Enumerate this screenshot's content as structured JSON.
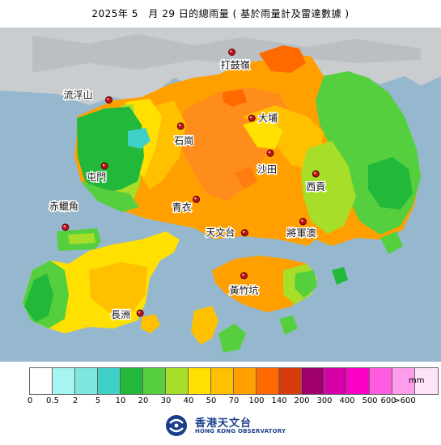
{
  "title": "2025年 5　月 29 日的總雨量 ( 基於雨量計及雷達數據 )",
  "stations": [
    {
      "id": "ta-ku-ling",
      "name": "打鼓嶺",
      "lon": 114.156,
      "lat": 22.529
    },
    {
      "id": "lau-fau-shan",
      "name": "流浮山",
      "lon": 113.983,
      "lat": 22.469
    },
    {
      "id": "shek-kong",
      "name": "石崗",
      "lon": 114.084,
      "lat": 22.436
    },
    {
      "id": "tai-po",
      "name": "大埔",
      "lon": 114.184,
      "lat": 22.446
    },
    {
      "id": "tuen-mun",
      "name": "屯門",
      "lon": 113.977,
      "lat": 22.386
    },
    {
      "id": "sha-tin",
      "name": "沙田",
      "lon": 114.21,
      "lat": 22.402
    },
    {
      "id": "sai-kung",
      "name": "西貢",
      "lon": 114.274,
      "lat": 22.376
    },
    {
      "id": "tsing-yi",
      "name": "青衣",
      "lon": 114.106,
      "lat": 22.344
    },
    {
      "id": "chek-lap-kok",
      "name": "赤鱲角",
      "lon": 113.922,
      "lat": 22.309
    },
    {
      "id": "tseung-kwan-o",
      "name": "將軍澳",
      "lon": 114.256,
      "lat": 22.316
    },
    {
      "id": "hk-observatory",
      "name": "天文台",
      "lon": 114.174,
      "lat": 22.302
    },
    {
      "id": "wong-chuk-hang",
      "name": "黃竹坑",
      "lon": 114.173,
      "lat": 22.248
    },
    {
      "id": "cheung-chau",
      "name": "長洲",
      "lon": 114.027,
      "lat": 22.201
    }
  ],
  "legend": {
    "unit": "mm",
    "colors": [
      "#ffffff",
      "#a6f5f0",
      "#7fe6e0",
      "#3fd1c8",
      "#22b83a",
      "#55cf3e",
      "#a6de2a",
      "#ffe000",
      "#ffc000",
      "#ffa000",
      "#ff6a00",
      "#d93a0a",
      "#a0006e",
      "#d600a8",
      "#ff00c8",
      "#ff5ce0",
      "#ff9cec",
      "#ffe4f8"
    ],
    "ticks": [
      "0",
      "0.5",
      "2",
      "5",
      "10",
      "20",
      "30",
      "40",
      "50",
      "70",
      "100",
      "140",
      "200",
      "300",
      "400",
      "500",
      "600",
      ">600"
    ]
  },
  "logo": {
    "chinese": "香港天文台",
    "english": "HONG KONG OBSERVATORY"
  }
}
